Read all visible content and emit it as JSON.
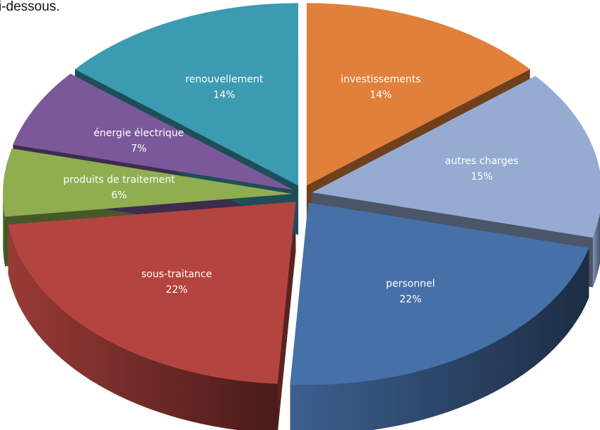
{
  "caption": "i-dessous.",
  "chart_data": {
    "type": "pie",
    "categories": [
      "investissements",
      "autres charges",
      "personnel",
      "sous-traitance",
      "produits de traitement",
      "énergie électrique",
      "renouvellement"
    ],
    "values": [
      14,
      15,
      22,
      22,
      6,
      7,
      14
    ],
    "value_labels": [
      "14%",
      "15%",
      "22%",
      "22%",
      "6%",
      "7%",
      "14%"
    ],
    "colors": [
      "#e0803a",
      "#95abd2",
      "#4670a8",
      "#b4443f",
      "#8fae4f",
      "#7b5899",
      "#3b9bb1"
    ],
    "start_angle": 90,
    "direction": "clockwise",
    "exploded": true,
    "three_d": true
  }
}
